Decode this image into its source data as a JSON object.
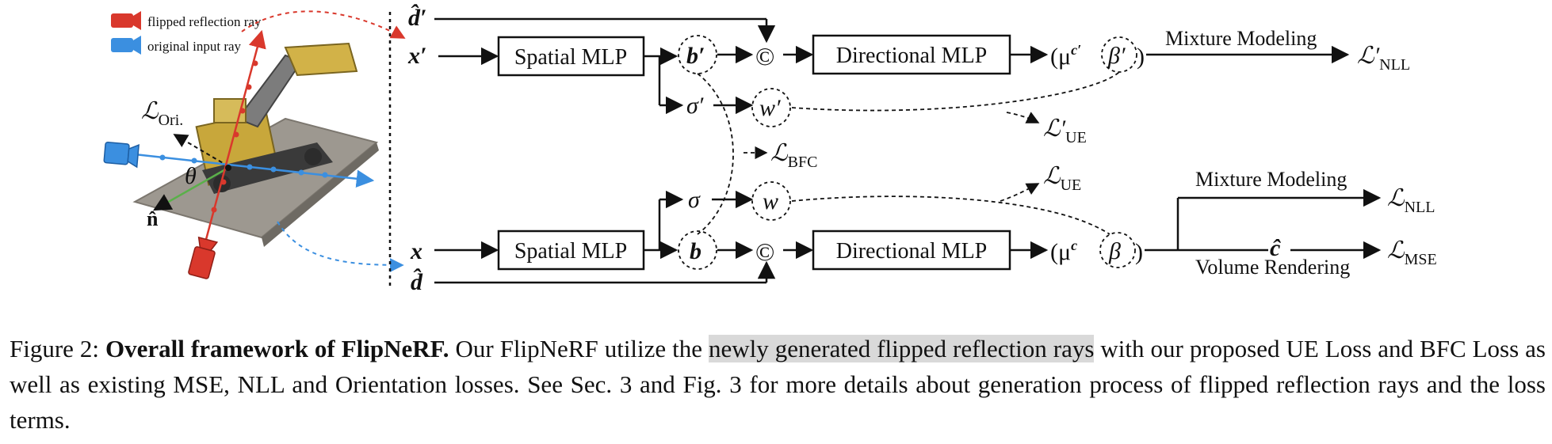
{
  "figure": {
    "legend": {
      "flipped": {
        "label": "flipped reflection ray",
        "color": "#d9382c"
      },
      "original": {
        "label": "original input ray",
        "color": "#3b8fe0"
      }
    },
    "scene_labels": {
      "loss_ori": "ℒ",
      "loss_ori_sub": "Ori.",
      "theta": "θ",
      "normal": "n̂"
    },
    "top_branch": {
      "d": "d̂′",
      "x": "x′",
      "spatial": "Spatial MLP",
      "b": "b′",
      "sigma": "σ′",
      "w": "w′",
      "concat": "©",
      "directional": "Directional MLP",
      "out_open": "(μ",
      "out_sup": "c′",
      "out_beta": "β′",
      "out_close": ")",
      "mixture": "Mixture Modeling",
      "nll": "ℒ′",
      "nll_sub": "NLL",
      "ue": "ℒ′",
      "ue_sub": "UE"
    },
    "middle": {
      "bfc": "ℒ",
      "bfc_sub": "BFC"
    },
    "bottom_branch": {
      "x": "x",
      "d": "d̂",
      "spatial": "Spatial MLP",
      "b": "b",
      "sigma": "σ",
      "w": "w",
      "concat": "©",
      "directional": "Directional MLP",
      "out_open": "(μ",
      "out_sup": "c",
      "out_beta": "β",
      "out_close": ")",
      "mixture": "Mixture Modeling",
      "nll": "ℒ",
      "nll_sub": "NLL",
      "ue": "ℒ",
      "ue_sub": "UE",
      "c_hat": "ĉ",
      "volume": "Volume Rendering",
      "mse": "ℒ",
      "mse_sub": "MSE"
    }
  },
  "caption": {
    "label": "Figure 2:",
    "title": "Overall framework of FlipNeRF.",
    "text1": " Our FlipNeRF utilize the ",
    "highlight": "newly generated flipped reflection rays",
    "text2": " with our proposed UE Loss and BFC Loss as well as existing MSE, NLL and Orientation losses. See Sec. 3 and Fig. 3 for more details about generation process of flipped reflection rays and the loss terms."
  }
}
